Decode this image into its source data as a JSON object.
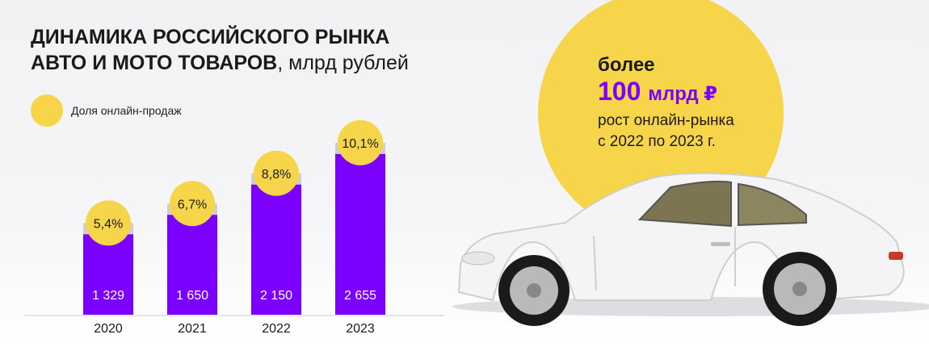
{
  "header": {
    "title_line1": "ДИНАМИКА РОССИЙСКОГО РЫНКА",
    "title_line2": "АВТО И МОТО ТОВАРОВ",
    "title_unit": ", млрд рублей"
  },
  "legend": {
    "label": "Доля онлайн-продаж"
  },
  "promo": {
    "lead": "более",
    "big_number": "100",
    "big_unit": "млрд ₽",
    "desc_line1": "рост онлайн-рынка",
    "desc_line2": "с 2022 по 2023 г."
  },
  "colors": {
    "bar": "#7b00ff",
    "bubble": "#f7d54a",
    "cap": "#cfcfcf",
    "accent_text": "#7b00ff"
  },
  "chart_data": {
    "type": "bar",
    "categories": [
      "2020",
      "2021",
      "2022",
      "2023"
    ],
    "values": [
      1329,
      1650,
      2150,
      2655
    ],
    "value_labels": [
      "1 329",
      "1 650",
      "2 150",
      "2 655"
    ],
    "online_share": [
      5.4,
      6.7,
      8.8,
      10.1
    ],
    "online_share_labels": [
      "5,4%",
      "6,7%",
      "8,8%",
      "10,1%"
    ],
    "title": "ДИНАМИКА РОССИЙСКОГО РЫНКА АВТО И МОТО ТОВАРОВ, млрд рублей",
    "xlabel": "",
    "ylabel": "",
    "ylim": [
      0,
      2800
    ],
    "grid": false
  }
}
